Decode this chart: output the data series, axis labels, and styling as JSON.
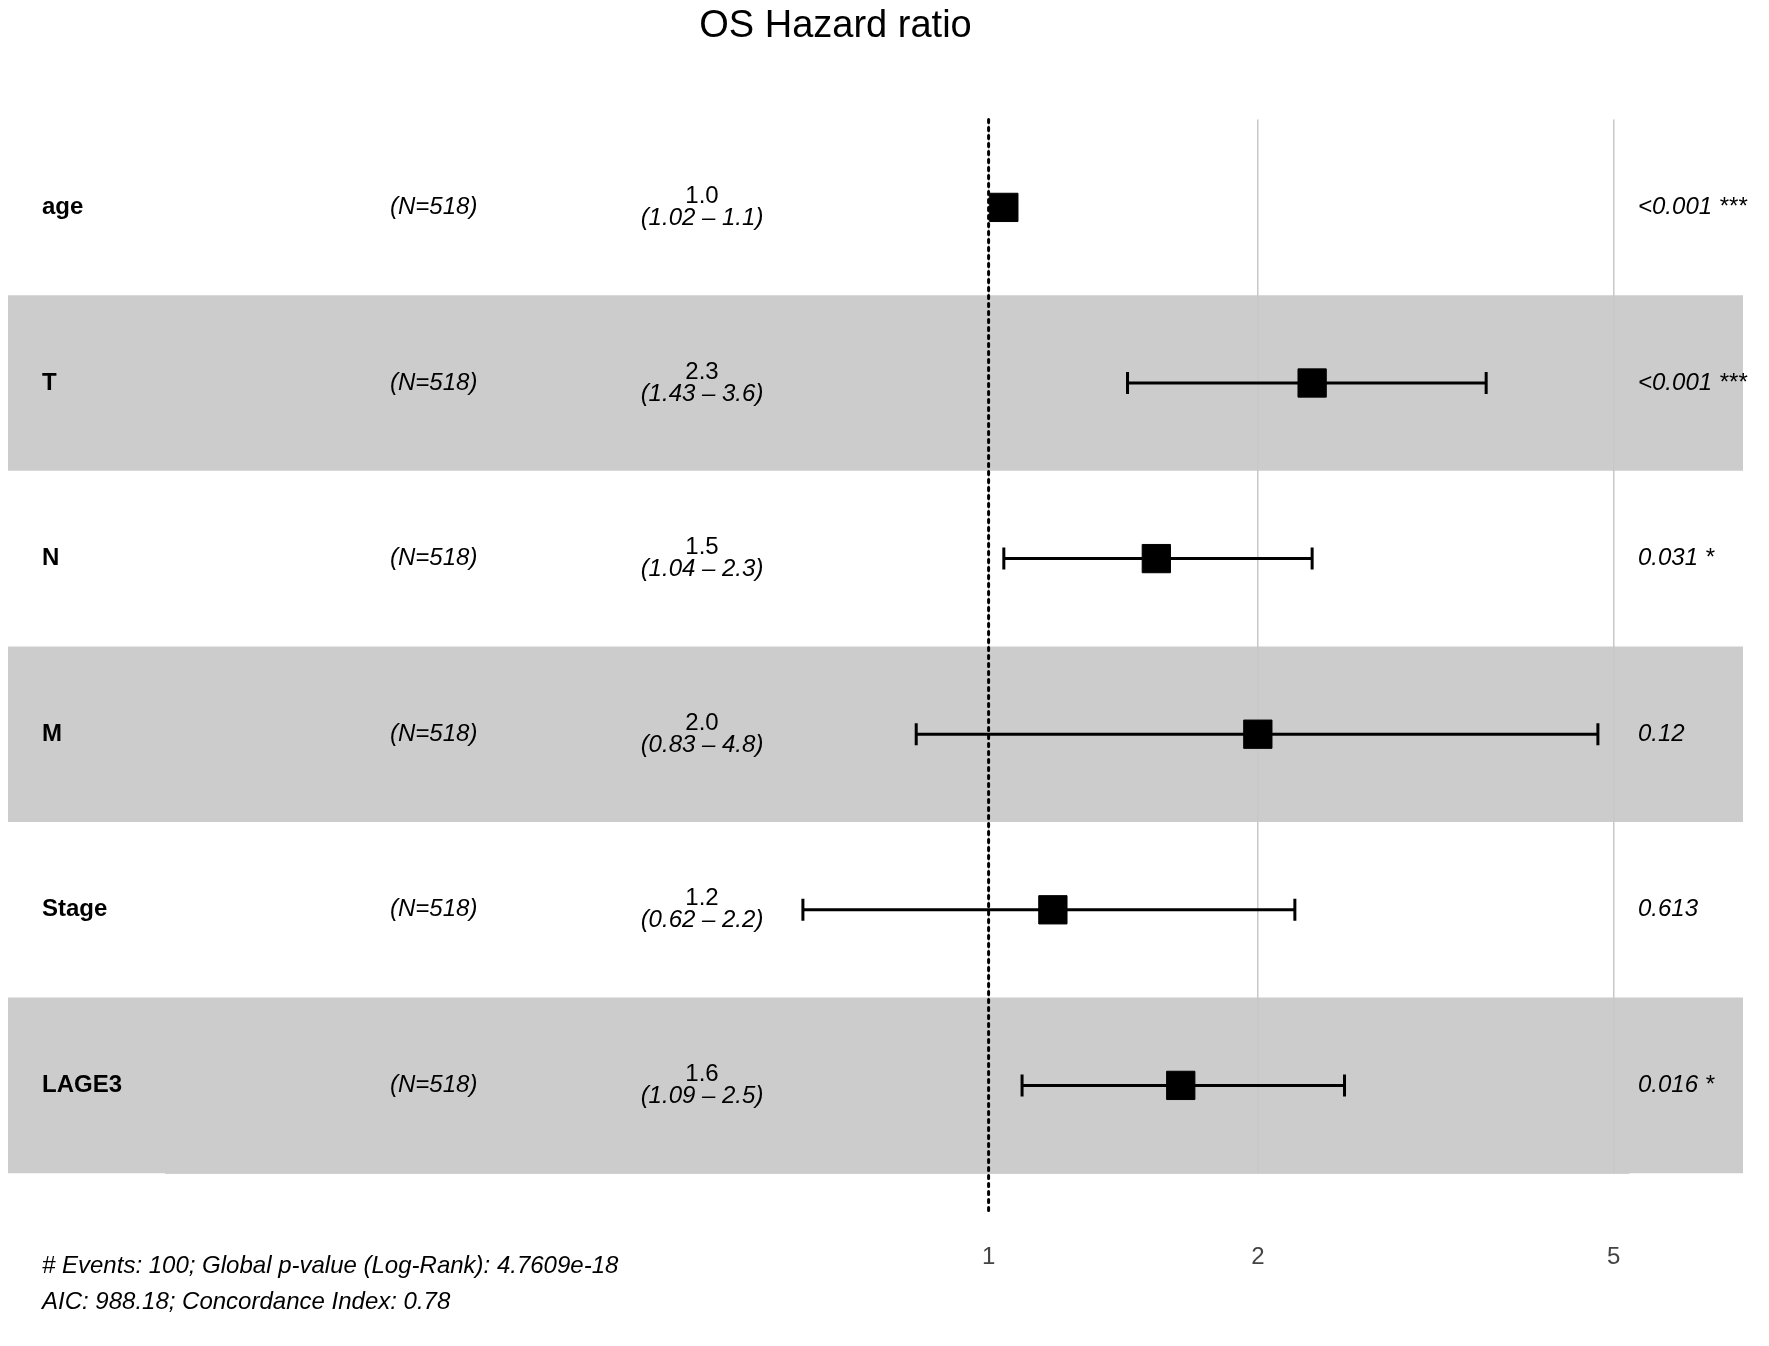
{
  "chart_data": {
    "type": "scatter",
    "orientation": "horizontal",
    "title": "OS Hazard ratio",
    "categories": [
      "age",
      "T",
      "N",
      "M",
      "Stage",
      "LAGE3"
    ],
    "values": [
      1.04,
      2.3,
      1.54,
      2.0,
      1.18,
      1.64
    ],
    "errors": [
      null,
      [
        1.43,
        3.6
      ],
      [
        1.04,
        2.3
      ],
      [
        0.83,
        4.8
      ],
      [
        0.62,
        2.2
      ],
      [
        1.09,
        2.5
      ]
    ],
    "color": "#000000",
    "marker": "square",
    "log": "x",
    "xlim": [
      0.12,
      5.2
    ],
    "xticks": [
      1,
      2,
      5
    ],
    "grid": "x",
    "legend": false,
    "ref_lines": [
      {
        "axis": "x",
        "value": 1,
        "line_style": "dotted",
        "color": "#000000"
      }
    ],
    "bands": [
      {
        "axis": "y",
        "from": "T",
        "to": "T",
        "color": "#cccccc"
      },
      {
        "axis": "y",
        "from": "M",
        "to": "M",
        "color": "#cccccc"
      },
      {
        "axis": "y",
        "from": "LAGE3",
        "to": "LAGE3",
        "color": "#cccccc"
      }
    ],
    "annotations": [
      "(N=518)",
      "(N=518)",
      "(N=518)",
      "(N=518)",
      "(N=518)",
      "(N=518)",
      "1.0\n(1.02 – 1.1)",
      "2.3\n(1.43 – 3.6)",
      "1.5\n(1.04 – 2.3)",
      "2.0\n(0.83 – 4.8)",
      "1.2\n(0.62 – 2.2)",
      "1.6\n(1.09 – 2.5)",
      "<0.001 ***",
      "<0.001 ***",
      "0.031 *",
      "0.12",
      "0.613",
      "0.016 *",
      "# Events: 100; Global p-value (Log-Rank): 4.7609e-18",
      "AIC: 988.18; Concordance Index: 0.78"
    ]
  }
}
